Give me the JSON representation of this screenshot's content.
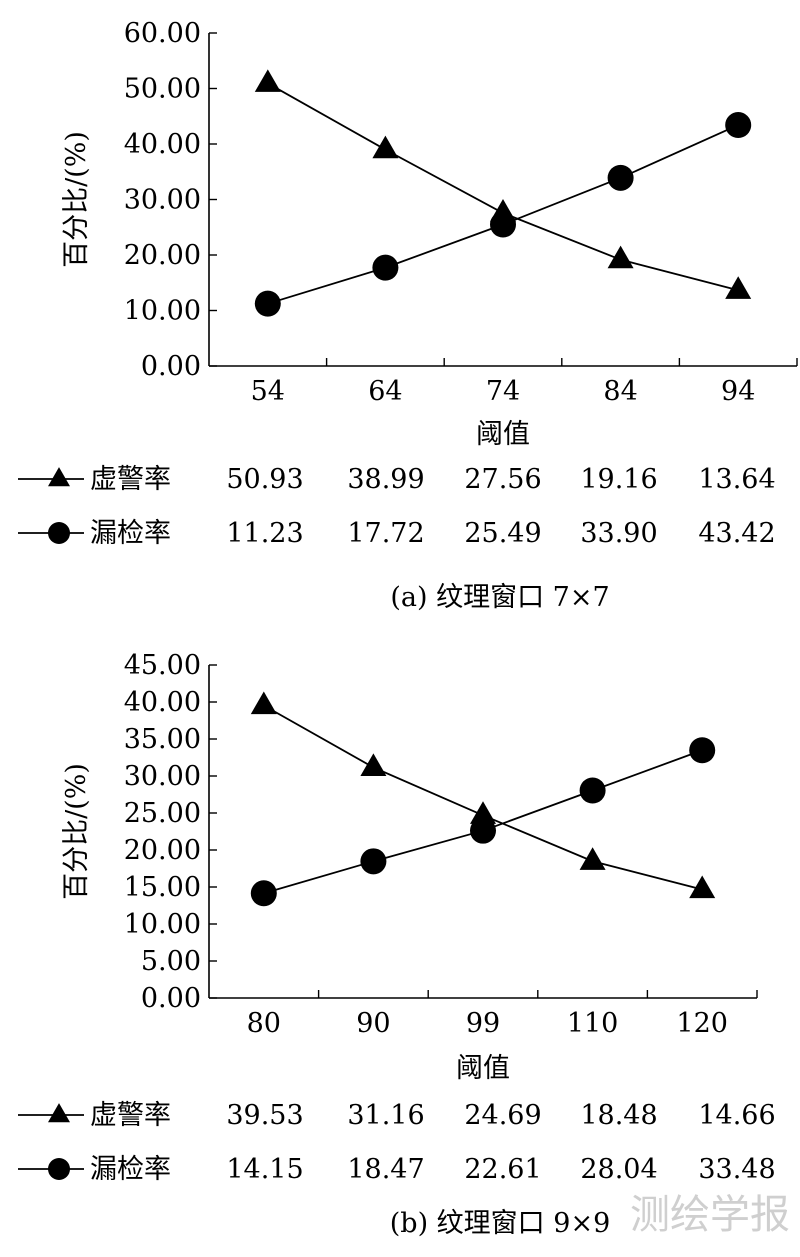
{
  "chart_data": [
    {
      "type": "line",
      "caption": "(a) 纹理窗口 7×7",
      "xlabel": "阈值",
      "ylabel": "百分比/(%)",
      "categories": [
        "54",
        "64",
        "74",
        "84",
        "94"
      ],
      "ylim": [
        0,
        60
      ],
      "yticks": [
        "0.00",
        "10.00",
        "20.00",
        "30.00",
        "40.00",
        "50.00",
        "60.00"
      ],
      "grid": false,
      "legend": "table-below",
      "series": [
        {
          "name": "虚警率",
          "marker": "triangle",
          "values": [
            50.93,
            38.99,
            27.56,
            19.16,
            13.64
          ],
          "labels": [
            "50.93",
            "38.99",
            "27.56",
            "19.16",
            "13.64"
          ]
        },
        {
          "name": "漏检率",
          "marker": "circle",
          "values": [
            11.23,
            17.72,
            25.49,
            33.9,
            43.42
          ],
          "labels": [
            "11.23",
            "17.72",
            "25.49",
            "33.90",
            "43.42"
          ]
        }
      ]
    },
    {
      "type": "line",
      "caption": "(b) 纹理窗口 9×9",
      "xlabel": "阈值",
      "ylabel": "百分比/(%)",
      "categories": [
        "80",
        "90",
        "99",
        "110",
        "120"
      ],
      "ylim": [
        0,
        45
      ],
      "yticks": [
        "0.00",
        "5.00",
        "10.00",
        "15.00",
        "20.00",
        "25.00",
        "30.00",
        "35.00",
        "40.00",
        "45.00"
      ],
      "grid": false,
      "legend": "table-below",
      "series": [
        {
          "name": "虚警率",
          "marker": "triangle",
          "values": [
            39.53,
            31.16,
            24.69,
            18.48,
            14.66
          ],
          "labels": [
            "39.53",
            "31.16",
            "24.69",
            "18.48",
            "14.66"
          ]
        },
        {
          "name": "漏检率",
          "marker": "circle",
          "values": [
            14.15,
            18.47,
            22.61,
            28.04,
            33.48
          ],
          "labels": [
            "14.15",
            "18.47",
            "22.61",
            "28.04",
            "33.48"
          ]
        }
      ]
    }
  ],
  "watermark": "测绘学报"
}
